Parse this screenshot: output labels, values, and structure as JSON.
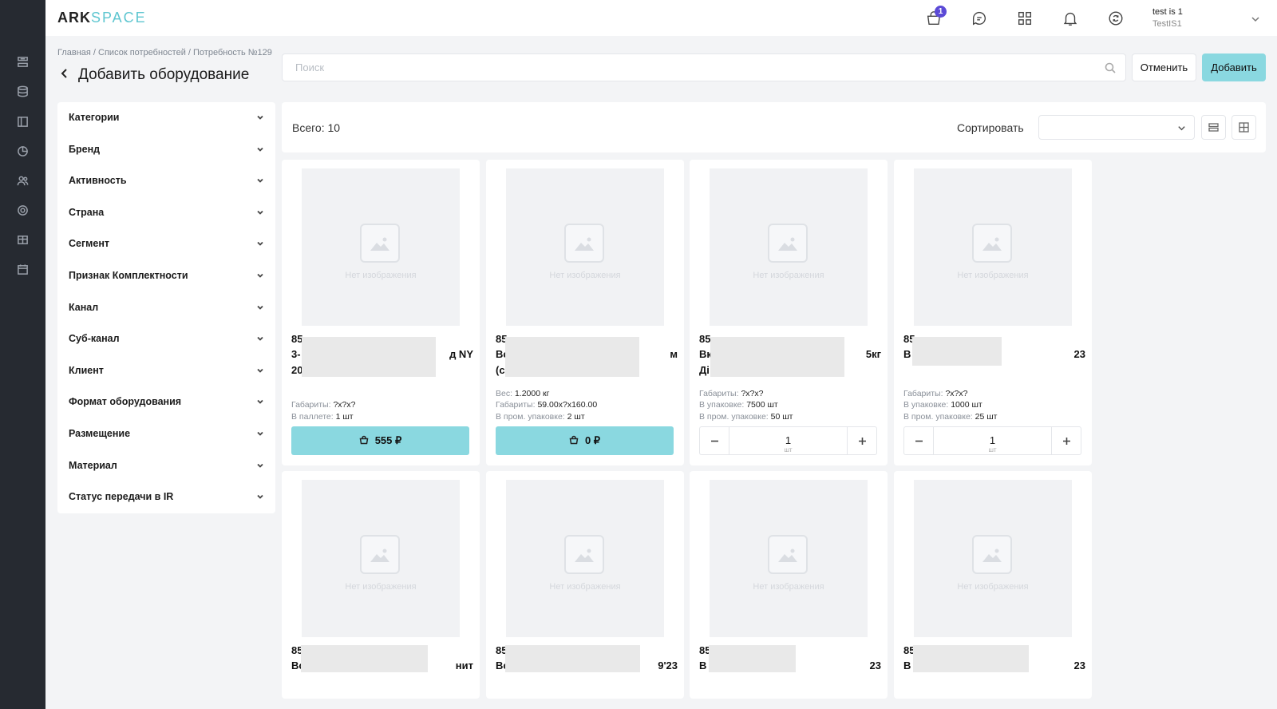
{
  "app": {
    "logo_ark": "ARK",
    "logo_space": "SPACE"
  },
  "header": {
    "cart_badge": "1",
    "user_name": "test is 1",
    "user_sub": "TestIS1"
  },
  "breadcrumb": "Главная / Список потребностей / Потребность №129",
  "page_title": "Добавить оборудование",
  "search": {
    "placeholder": "Поиск",
    "value": ""
  },
  "actions": {
    "cancel": "Отменить",
    "add": "Добавить"
  },
  "filters": [
    "Категории",
    "Бренд",
    "Активность",
    "Страна",
    "Сегмент",
    "Признак Комплектности",
    "Канал",
    "Суб-канал",
    "Клиент",
    "Формат оборудования",
    "Размещение",
    "Материал",
    "Статус передачи в IR"
  ],
  "toolbar": {
    "total": "Всего: 10",
    "sort_label": "Сортировать",
    "sort_value": ""
  },
  "no_image_text": "Нет изображения",
  "products": [
    {
      "code": "85",
      "name_line1_left": "3-",
      "name_line1_right": "д NY",
      "name_line2_left": "20",
      "specs": [
        {
          "label": "Габариты: ",
          "value": "?x?x?"
        },
        {
          "label": "В паллете: ",
          "value": "1 шт"
        }
      ],
      "action": "price",
      "price": "555 ₽"
    },
    {
      "code": "85",
      "name_line1_left": "Вс",
      "name_line1_right": "м",
      "name_line2_left": "(с",
      "specs": [
        {
          "label": "Вес: ",
          "value": "1.2000 кг"
        },
        {
          "label": "Габариты: ",
          "value": "59.00x?x160.00"
        },
        {
          "label": "В пром. упаковке: ",
          "value": "2 шт"
        }
      ],
      "action": "price",
      "price": "0 ₽"
    },
    {
      "code": "85",
      "name_line1_left": "Вк",
      "name_line1_right": "5кг",
      "name_line2_left": "Ді",
      "specs": [
        {
          "label": "Габариты: ",
          "value": "?x?x?"
        },
        {
          "label": "В упаковке: ",
          "value": "7500 шт"
        },
        {
          "label": "В пром. упаковке: ",
          "value": "50 шт"
        }
      ],
      "action": "stepper",
      "qty": "1",
      "unit": "шт"
    },
    {
      "code": "85",
      "name_line1_left": "В",
      "name_line1_right": "23",
      "name_line2_left": "",
      "specs": [
        {
          "label": "Габариты: ",
          "value": "?x?x?"
        },
        {
          "label": "В упаковке: ",
          "value": "1000 шт"
        },
        {
          "label": "В пром. упаковке: ",
          "value": "25 шт"
        }
      ],
      "action": "stepper",
      "qty": "1",
      "unit": "шт"
    },
    {
      "code": "85",
      "name_line1_left": "Вс",
      "name_line1_right": "нит"
    },
    {
      "code": "85",
      "name_line1_left": "Вс",
      "name_line1_right": "9'23"
    },
    {
      "code": "85",
      "name_line1_left": "В",
      "name_line1_right": "23"
    },
    {
      "code": "85",
      "name_line1_left": "В",
      "name_line1_right": "23"
    }
  ],
  "icons": {
    "rail": [
      "list-icon",
      "database-icon",
      "layout-icon",
      "pie-chart-icon",
      "users-icon",
      "settings-icon",
      "table-icon",
      "calendar-icon"
    ],
    "header": [
      "cart-icon",
      "chat-icon",
      "apps-grid-icon",
      "bell-icon",
      "sync-icon"
    ]
  }
}
